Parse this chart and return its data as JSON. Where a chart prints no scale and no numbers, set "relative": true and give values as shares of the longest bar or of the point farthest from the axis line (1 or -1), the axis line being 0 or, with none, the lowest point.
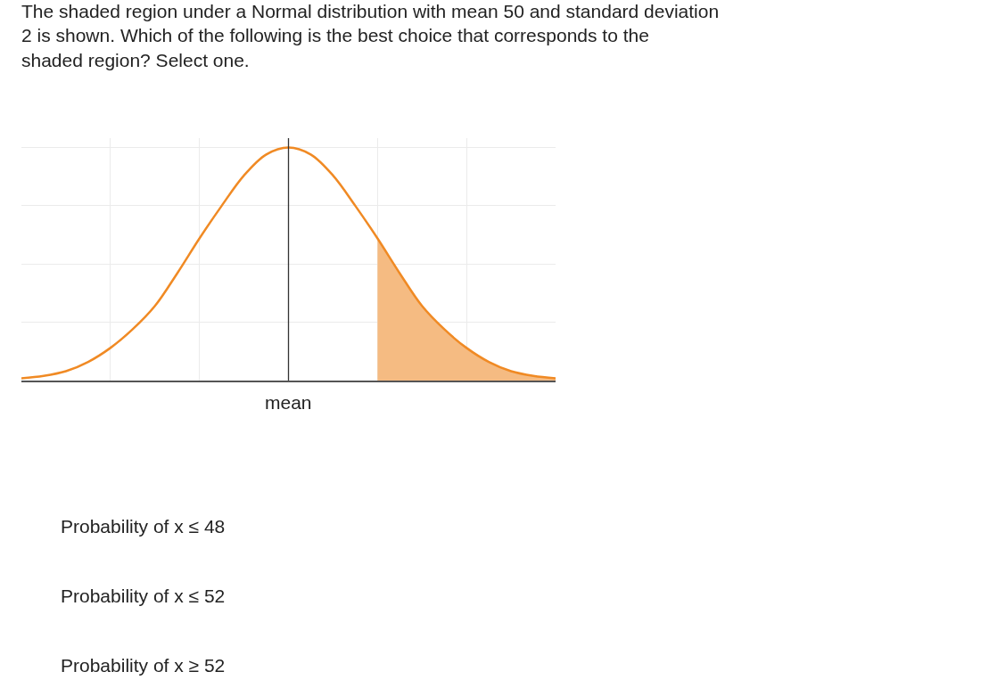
{
  "chart_data": {
    "type": "line",
    "relative": true,
    "title": "The shaded region under a Normal distribution with mean 50 and standard deviation 2 is shown. Which of the following is the best choice that corresponds to the shaded region? Select one.",
    "categories": [
      null,
      null,
      null,
      null,
      null,
      null,
      null,
      null,
      null,
      null,
      null,
      null,
      null,
      null,
      null,
      null,
      null,
      null,
      null,
      null,
      null,
      null,
      null,
      null,
      null
    ],
    "series": [
      {
        "color": "#f08a24",
        "values": [
          0.01,
          0.02,
          0.04,
          0.08,
          0.14,
          0.22,
          0.32,
          0.46,
          0.61,
          0.75,
          0.88,
          0.97,
          1,
          0.97,
          0.88,
          0.75,
          0.61,
          0.46,
          0.32,
          0.22,
          0.14,
          0.08,
          0.04,
          0.02,
          0.01
        ]
      },
      {
        "type": "area",
        "color": "#f5bb82",
        "values": [
          null,
          null,
          null,
          null,
          null,
          null,
          null,
          null,
          null,
          null,
          null,
          null,
          null,
          null,
          null,
          null,
          0.61,
          0.46,
          0.32,
          0.22,
          0.14,
          0.08,
          0.04,
          0.02,
          0.01
        ]
      }
    ],
    "grid": true,
    "marker": "none",
    "line_style": "solid",
    "annotations": [
      "mean",
      "Probability of x ≤ 48",
      "Probability of x ≤ 52",
      "Probability of x ≥ 52"
    ]
  }
}
